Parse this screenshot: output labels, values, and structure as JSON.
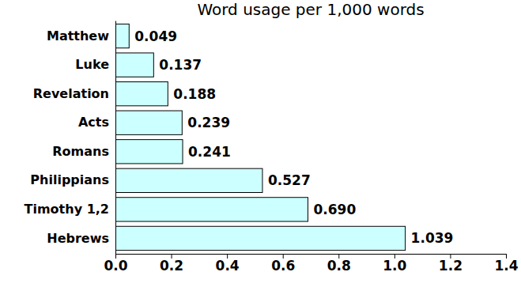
{
  "chart_data": {
    "type": "bar",
    "title": "Word usage per 1,000 words",
    "orientation": "horizontal",
    "categories": [
      "Matthew",
      "Luke",
      "Revelation",
      "Acts",
      "Romans",
      "Philippians",
      "Timothy 1,2",
      "Hebrews"
    ],
    "values": [
      0.049,
      0.137,
      0.188,
      0.239,
      0.241,
      0.527,
      0.69,
      1.039
    ],
    "value_labels": [
      "0.049",
      "0.137",
      "0.188",
      "0.239",
      "0.241",
      "0.527",
      "0.690",
      "1.039"
    ],
    "data_labels": true,
    "color": "#ccffff",
    "grid": false,
    "xlim": [
      0,
      1.4
    ],
    "xticks": [
      {
        "value": 0,
        "label": "0.0"
      },
      0.2,
      0.4,
      0.6,
      0.8,
      {
        "value": 1,
        "label": "1.0"
      },
      1.2,
      1.4
    ]
  }
}
